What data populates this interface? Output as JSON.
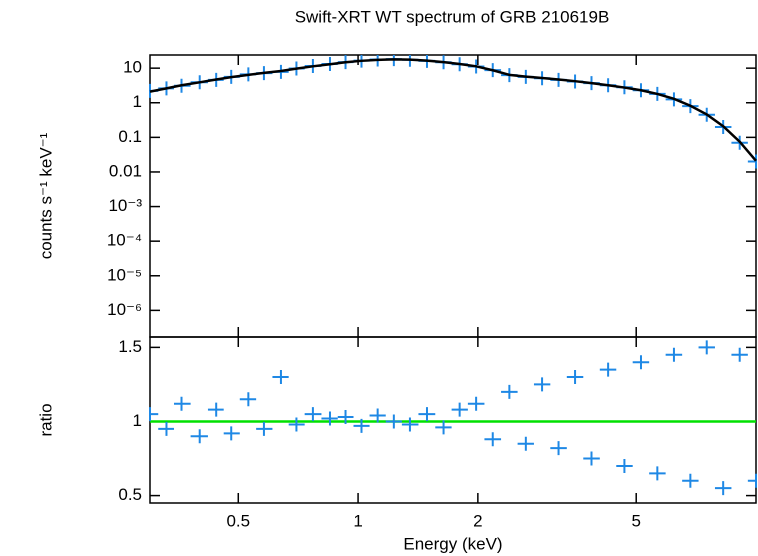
{
  "chart_data": [
    {
      "type": "line",
      "title": "Swift-XRT WT spectrum of GRB 210619B",
      "ylabel": "counts s⁻¹ keV⁻¹",
      "xlim": [
        0.3,
        10
      ],
      "xlog": true,
      "ylim": [
        1.7e-07,
        24
      ],
      "ylog": true,
      "yticks": [
        10,
        1,
        0.1,
        0.01,
        {
          "value": 0.001,
          "label": "10⁻³"
        },
        {
          "value": 0.0001,
          "label": "10⁻⁴"
        },
        {
          "value": 1e-05,
          "label": "10⁻⁵"
        },
        {
          "value": 1e-06,
          "label": "10⁻⁶"
        }
      ],
      "x": [
        0.3,
        0.33,
        0.36,
        0.4,
        0.44,
        0.48,
        0.53,
        0.58,
        0.64,
        0.7,
        0.77,
        0.85,
        0.93,
        1.02,
        1.12,
        1.23,
        1.35,
        1.49,
        1.64,
        1.8,
        1.98,
        2.18,
        2.4,
        2.64,
        2.9,
        3.19,
        3.51,
        3.86,
        4.25,
        4.67,
        5.14,
        5.65,
        6.22,
        6.84,
        7.52,
        8.27,
        9.1,
        10
      ],
      "data": {
        "color": "#1e88e5",
        "values": [
          2.2,
          2.6,
          3.1,
          3.9,
          4.6,
          5.6,
          6.6,
          7.2,
          7.8,
          9.8,
          11.5,
          13.2,
          15,
          16.5,
          17.8,
          18.2,
          17.5,
          16.3,
          14.8,
          13,
          11.2,
          8.8,
          6.3,
          5.6,
          5.1,
          4.6,
          4.1,
          3.7,
          3.2,
          2.8,
          2.3,
          1.8,
          1.25,
          0.8,
          0.45,
          0.2,
          0.07,
          0.02
        ]
      },
      "model": {
        "color": "#000000",
        "values": [
          2.1,
          2.6,
          3.2,
          3.9,
          4.7,
          5.5,
          6.4,
          7.3,
          8.3,
          9.7,
          11.3,
          13,
          14.8,
          16.3,
          17.4,
          17.9,
          17.6,
          16.5,
          14.9,
          13.2,
          11.3,
          8.7,
          6.4,
          5.7,
          5.2,
          4.7,
          4.2,
          3.7,
          3.2,
          2.75,
          2.3,
          1.8,
          1.3,
          0.82,
          0.46,
          0.21,
          0.075,
          0.021
        ]
      }
    },
    {
      "type": "line",
      "ylabel": "ratio",
      "xlabel": "Energy (keV)",
      "xlim": [
        0.3,
        10
      ],
      "xlog": true,
      "xticks": [
        0.5,
        1,
        2,
        5
      ],
      "ylim": [
        0.45,
        1.57
      ],
      "yticks": [
        0.5,
        1,
        1.5
      ],
      "x": [
        0.3,
        0.33,
        0.36,
        0.4,
        0.44,
        0.48,
        0.53,
        0.58,
        0.64,
        0.7,
        0.77,
        0.85,
        0.93,
        1.02,
        1.12,
        1.23,
        1.35,
        1.49,
        1.64,
        1.8,
        1.98,
        2.18,
        2.4,
        2.64,
        2.9,
        3.19,
        3.51,
        3.86,
        4.25,
        4.67,
        5.14,
        5.65,
        6.22,
        6.84,
        7.52,
        8.27,
        9.1,
        10
      ],
      "data": {
        "color": "#1e88e5",
        "values": [
          1.05,
          0.95,
          1.12,
          0.9,
          1.08,
          0.92,
          1.15,
          0.95,
          1.3,
          0.98,
          1.05,
          1.02,
          1.03,
          0.97,
          1.04,
          1.0,
          0.98,
          1.05,
          0.96,
          1.08,
          1.12,
          0.88,
          1.2,
          0.85,
          1.25,
          0.82,
          1.3,
          0.75,
          1.35,
          0.7,
          1.4,
          0.65,
          1.45,
          0.6,
          1.5,
          0.55,
          1.45,
          0.6
        ]
      },
      "reference_line": 1,
      "reference_color": "#00e000"
    }
  ]
}
